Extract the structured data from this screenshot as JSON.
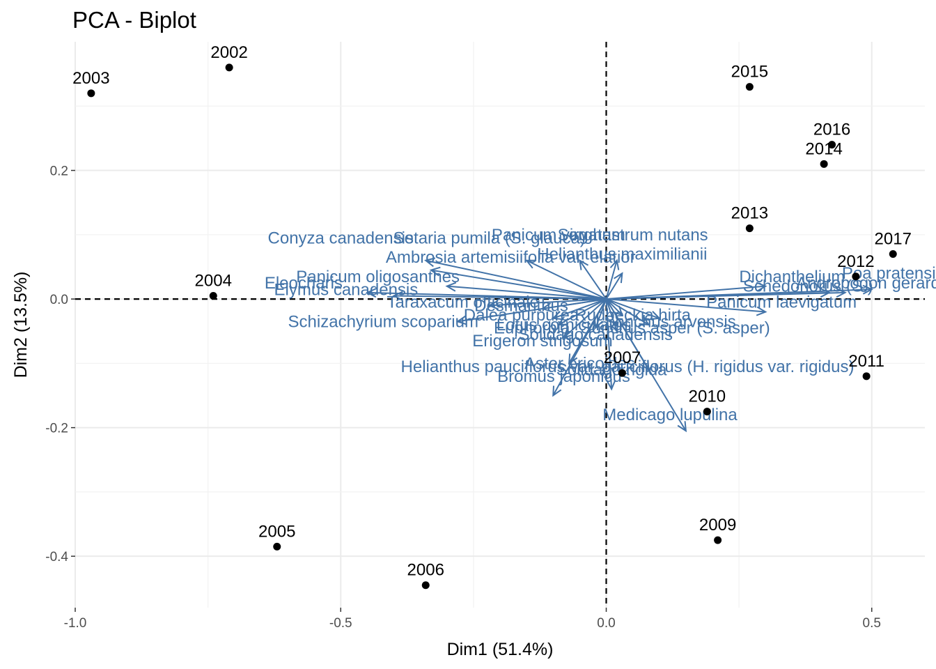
{
  "chart_data": {
    "type": "scatter",
    "title": "PCA - Biplot",
    "xlabel": "Dim1 (51.4%)",
    "ylabel": "Dim2 (13.5%)",
    "xlim": [
      -1.0,
      0.6
    ],
    "ylim": [
      -0.48,
      0.4
    ],
    "x_ticks": [
      -1.0,
      -0.5,
      0.0,
      0.5
    ],
    "x_tick_labels": [
      "-1.0",
      "-0.5",
      "0.0",
      "0.5"
    ],
    "y_ticks": [
      0.2,
      0.0,
      -0.2,
      -0.4
    ],
    "y_tick_labels": [
      "0.2",
      "0.0",
      "-0.2",
      "-0.4"
    ],
    "grid": true,
    "reference_lines": {
      "x": 0,
      "y": 0,
      "style": "dashed"
    },
    "colors": {
      "points": "#000000",
      "variables": "#4273a8",
      "grid": "#ebebeb"
    },
    "individuals": [
      {
        "label": "2002",
        "x": -0.71,
        "y": 0.36
      },
      {
        "label": "2003",
        "x": -0.97,
        "y": 0.32
      },
      {
        "label": "2004",
        "x": -0.74,
        "y": 0.005
      },
      {
        "label": "2005",
        "x": -0.62,
        "y": -0.385
      },
      {
        "label": "2006",
        "x": -0.34,
        "y": -0.445
      },
      {
        "label": "2007",
        "x": 0.03,
        "y": -0.115
      },
      {
        "label": "2009",
        "x": 0.21,
        "y": -0.375
      },
      {
        "label": "2010",
        "x": 0.19,
        "y": -0.175
      },
      {
        "label": "2011",
        "x": 0.49,
        "y": -0.12
      },
      {
        "label": "2012",
        "x": 0.47,
        "y": 0.035
      },
      {
        "label": "2013",
        "x": 0.27,
        "y": 0.11
      },
      {
        "label": "2014",
        "x": 0.41,
        "y": 0.21
      },
      {
        "label": "2015",
        "x": 0.27,
        "y": 0.33
      },
      {
        "label": "2016",
        "x": 0.425,
        "y": 0.24
      },
      {
        "label": "2017",
        "x": 0.54,
        "y": 0.07
      }
    ],
    "variables": [
      {
        "label": "Conyza canadensis",
        "x": -0.34,
        "y": 0.06,
        "lx": -0.5,
        "ly": 0.095
      },
      {
        "label": "Setaria pumila (S. glauca)",
        "x": -0.15,
        "y": 0.06,
        "lx": -0.22,
        "ly": 0.095
      },
      {
        "label": "Panicum virgatum",
        "x": -0.05,
        "y": 0.06,
        "lx": -0.09,
        "ly": 0.1
      },
      {
        "label": "Sorghastrum nutans",
        "x": 0.02,
        "y": 0.06,
        "lx": 0.05,
        "ly": 0.1
      },
      {
        "label": "Ambrosia artemisiifolia var. elatior",
        "x": -0.33,
        "y": 0.045,
        "lx": -0.18,
        "ly": 0.065
      },
      {
        "label": "Helianthus maximilianii",
        "x": 0.03,
        "y": 0.04,
        "lx": 0.03,
        "ly": 0.07
      },
      {
        "label": "Panicum oligosanthes",
        "x": -0.3,
        "y": 0.02,
        "lx": -0.43,
        "ly": 0.035
      },
      {
        "label": "Eleocharis",
        "x": -0.45,
        "y": 0.01,
        "lx": -0.57,
        "ly": 0.025
      },
      {
        "label": "Elymus canadensis",
        "x": -0.4,
        "y": 0.005,
        "lx": -0.49,
        "ly": 0.015
      },
      {
        "label": "Dichanthelium",
        "x": 0.3,
        "y": 0.02,
        "lx": 0.35,
        "ly": 0.035
      },
      {
        "label": "Poa pratensis",
        "x": 0.5,
        "y": 0.015,
        "lx": 0.54,
        "ly": 0.04
      },
      {
        "label": "Schedonorus (S.)",
        "x": 0.42,
        "y": 0.01,
        "lx": 0.38,
        "ly": 0.02
      },
      {
        "label": "Andropogon gerardii",
        "x": 0.45,
        "y": 0.01,
        "lx": 0.5,
        "ly": 0.025
      },
      {
        "label": "Taraxacum officinale",
        "x": -0.22,
        "y": -0.01,
        "lx": -0.27,
        "ly": -0.005
      },
      {
        "label": "Desmanthus",
        "x": -0.12,
        "y": -0.015,
        "lx": -0.16,
        "ly": -0.01
      },
      {
        "label": "Panicum laevigatum",
        "x": 0.3,
        "y": -0.02,
        "lx": 0.33,
        "ly": -0.005
      },
      {
        "label": "Schizachyrium scoparium",
        "x": -0.28,
        "y": -0.035,
        "lx": -0.42,
        "ly": -0.035
      },
      {
        "label": "Dalea purpurea",
        "x": -0.1,
        "y": -0.03,
        "lx": -0.16,
        "ly": -0.025
      },
      {
        "label": "Lotus corniculatus",
        "x": -0.02,
        "y": -0.045,
        "lx": -0.08,
        "ly": -0.04
      },
      {
        "label": "Sonchus asper (S. asper)",
        "x": 0.08,
        "y": -0.04,
        "lx": 0.13,
        "ly": -0.045
      },
      {
        "label": "Sonchus arvensis",
        "x": 0.1,
        "y": -0.03,
        "lx": 0.12,
        "ly": -0.035
      },
      {
        "label": "Euphorbia",
        "x": -0.09,
        "y": -0.04,
        "lx": -0.14,
        "ly": -0.045
      },
      {
        "label": "Rudbeckia hirta",
        "x": 0.03,
        "y": -0.025,
        "lx": 0.05,
        "ly": -0.025
      },
      {
        "label": "Solidago canadensis",
        "x": 0.02,
        "y": -0.05,
        "lx": -0.02,
        "ly": -0.055
      },
      {
        "label": "Erigeron strigosum",
        "x": -0.08,
        "y": -0.06,
        "lx": -0.12,
        "ly": -0.065
      },
      {
        "label": "Helianthus pauciflorus var. pauciflorus (H. rigidus var. rigidus)",
        "x": 0.08,
        "y": -0.11,
        "lx": 0.04,
        "ly": -0.105
      },
      {
        "label": "Aster ericoides",
        "x": -0.07,
        "y": -0.1,
        "lx": -0.05,
        "ly": -0.1
      },
      {
        "label": "Solidago rigida",
        "x": 0.01,
        "y": -0.14,
        "lx": 0.01,
        "ly": -0.11
      },
      {
        "label": "Bromus japonicus",
        "x": -0.1,
        "y": -0.15,
        "lx": -0.08,
        "ly": -0.12
      },
      {
        "label": "Medicago lupulina",
        "x": 0.15,
        "y": -0.205,
        "lx": 0.12,
        "ly": -0.18
      }
    ]
  }
}
